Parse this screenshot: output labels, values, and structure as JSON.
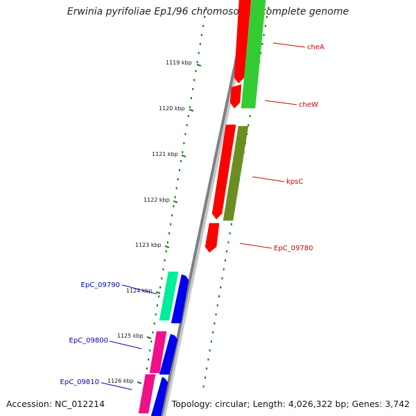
{
  "header": {
    "title": "Erwinia pyrifoliae Ep1/96 chromosome, complete genome"
  },
  "footer": {
    "accession": "Accession: NC_012214",
    "summary": "Topology: circular; Length: 4,026,322 bp; Genes: 3,742"
  },
  "scale_ticks": [
    {
      "label": "1119 kbp"
    },
    {
      "label": "1120 kbp"
    },
    {
      "label": "1121 kbp"
    },
    {
      "label": "1122 kbp"
    },
    {
      "label": "1123 kbp"
    },
    {
      "label": "1124 kbp"
    },
    {
      "label": "1125 kbp"
    },
    {
      "label": "1126 kbp"
    }
  ],
  "gene_labels": [
    {
      "text": "cheA",
      "color": "#cc0000"
    },
    {
      "text": "cheW",
      "color": "#cc0000"
    },
    {
      "text": "kpsC",
      "color": "#cc0000"
    },
    {
      "text": "EpC_09780",
      "color": "#cc0000"
    },
    {
      "text": "EpC_09790",
      "color": "#0000aa"
    },
    {
      "text": "EpC_09800",
      "color": "#0000aa"
    },
    {
      "text": "EpC_09810",
      "color": "#0000aa"
    }
  ],
  "colors": {
    "backbone": "#808080",
    "scale_green": "#1a7a1a",
    "red_feature": "#ff0000",
    "green_feature": "#33cc33",
    "olive_feature": "#6b8e23",
    "teal_feature": "#00ee99",
    "blue_feature": "#0000ee",
    "pink_feature": "#ee1188"
  }
}
